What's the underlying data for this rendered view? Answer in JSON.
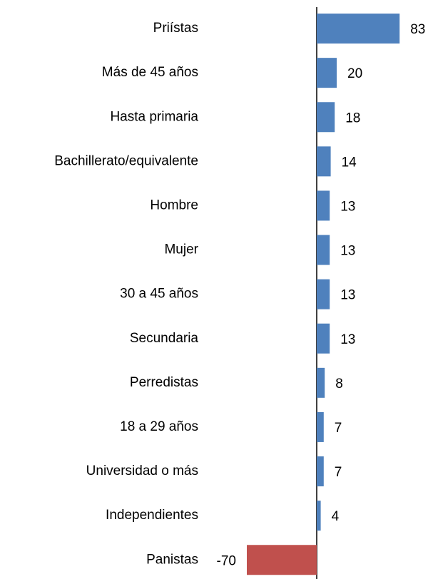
{
  "chart_data": {
    "type": "bar",
    "orientation": "horizontal",
    "categories": [
      "Priístas",
      "Más de 45 años",
      "Hasta primaria",
      "Bachillerato/equivalente",
      "Hombre",
      "Mujer",
      "30 a 45 años",
      "Secundaria",
      "Perredistas",
      "18 a 29 años",
      "Universidad o más",
      "Independientes",
      "Panistas"
    ],
    "values": [
      83,
      20,
      18,
      14,
      13,
      13,
      13,
      13,
      8,
      7,
      7,
      4,
      -70
    ],
    "colors": [
      "#4f81bd",
      "#4f81bd",
      "#4f81bd",
      "#4f81bd",
      "#4f81bd",
      "#4f81bd",
      "#4f81bd",
      "#4f81bd",
      "#4f81bd",
      "#4f81bd",
      "#4f81bd",
      "#4f81bd",
      "#c0504d"
    ]
  }
}
